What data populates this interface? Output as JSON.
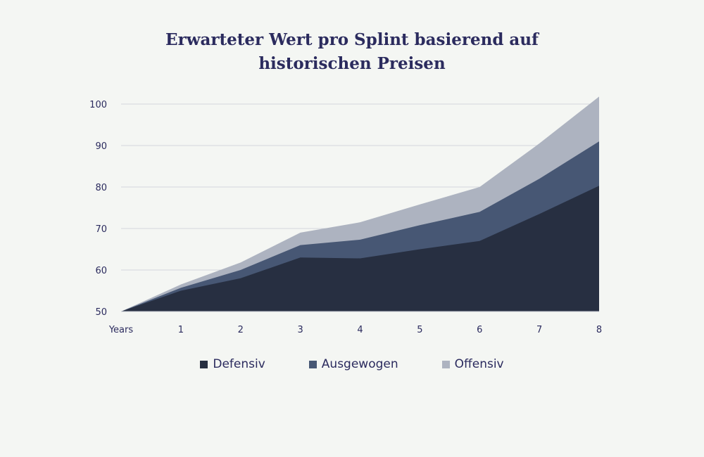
{
  "chart_data": {
    "type": "area",
    "stacked": true,
    "title_lines": [
      "Erwarteter Wert pro Splint basierend auf",
      "historischen Preisen"
    ],
    "xlabel": "",
    "ylabel": "",
    "x_tick_labels": [
      "Years",
      "1",
      "2",
      "3",
      "4",
      "5",
      "6",
      "7",
      "8"
    ],
    "x": [
      0,
      1,
      2,
      3,
      4,
      5,
      6,
      7,
      8
    ],
    "y_ticks": [
      50,
      60,
      70,
      80,
      90,
      100
    ],
    "ylim": [
      50,
      100
    ],
    "grid": "horizontal",
    "legend_position": "bottom",
    "series": [
      {
        "name": "Defensiv",
        "color": "#272f41",
        "values": [
          50,
          55,
          58,
          63,
          62.8,
          65,
          67,
          73.5,
          80.3
        ]
      },
      {
        "name": "Ausgewogen",
        "color": "#475774",
        "values": [
          50,
          55.7,
          60,
          66,
          67.3,
          70.8,
          74,
          82,
          91
        ]
      },
      {
        "name": "Offensiv",
        "color": "#adb3c0",
        "values": [
          50,
          56.5,
          61.8,
          69,
          71.5,
          75.8,
          80,
          90.5,
          101.8
        ]
      }
    ]
  }
}
